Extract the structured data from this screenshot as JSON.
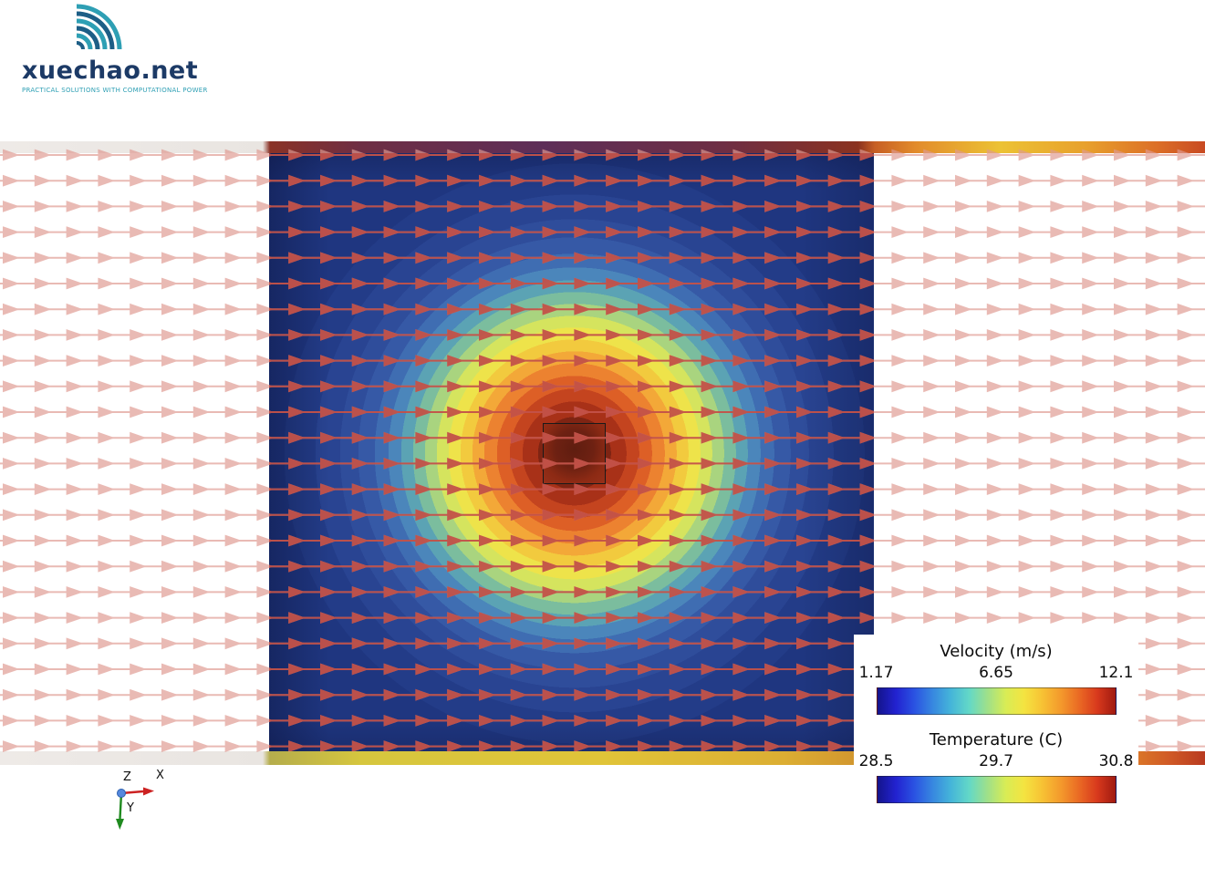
{
  "logo": {
    "brand": "xuechao.net",
    "tagline": "PRACTICAL SOLUTIONS WITH COMPUTATIONAL POWER",
    "brand_color": "#1c3a66",
    "accent_teal": "#2e9fb4",
    "accent_blue": "#1d5e86"
  },
  "chart_data": {
    "type": "heatmap",
    "subtype": "CFD slice: velocity vector glyph field over temperature contours around a heated square obstacle in channel flow",
    "flow_direction": "left-to-right (+X)",
    "legends": [
      {
        "id": "velocity",
        "title": "Velocity (m/s)",
        "min": "1.17",
        "mid": "6.65",
        "max": "12.1",
        "colormap": "blue-to-red rainbow (jet)",
        "position": "bottom-right"
      },
      {
        "id": "temperature",
        "title": "Temperature (C)",
        "min": "28.5",
        "mid": "29.7",
        "max": "30.8",
        "colormap": "blue-to-red rainbow (jet)",
        "position": "bottom-right"
      }
    ],
    "colorbar_stops": [
      "#14148c",
      "#2222d0",
      "#2a52e2",
      "#3787e0",
      "#45b5d9",
      "#63d8c7",
      "#9fe089",
      "#d8ec55",
      "#f4e441",
      "#f7c234",
      "#f49a2c",
      "#ea6a24",
      "#d8391d",
      "#a01a10"
    ],
    "orientation_axes": {
      "x": "X",
      "y": "Y",
      "z": "Z"
    },
    "vector_field": {
      "glyph": "arrow-right",
      "rows": 24,
      "cols": 38,
      "outer_color": "#e09a92",
      "inner_color": "#c04a40"
    },
    "temperature_contour": {
      "center_feature": "heated square obstacle",
      "bands_inner_to_outer": [
        "#7f2413",
        "#a83118",
        "#c4441f",
        "#dd5f26",
        "#ec8230",
        "#f3a838",
        "#f2ca3e",
        "#eee34a",
        "#d5e45e",
        "#a9d47f",
        "#7bbd9e",
        "#5ba3b4",
        "#4b86bb",
        "#3f6db2",
        "#3659a6",
        "#2f4d9b",
        "#294492",
        "#233c88"
      ],
      "background": "#1f3680",
      "hot_square_border": "#1a1a1a"
    }
  }
}
